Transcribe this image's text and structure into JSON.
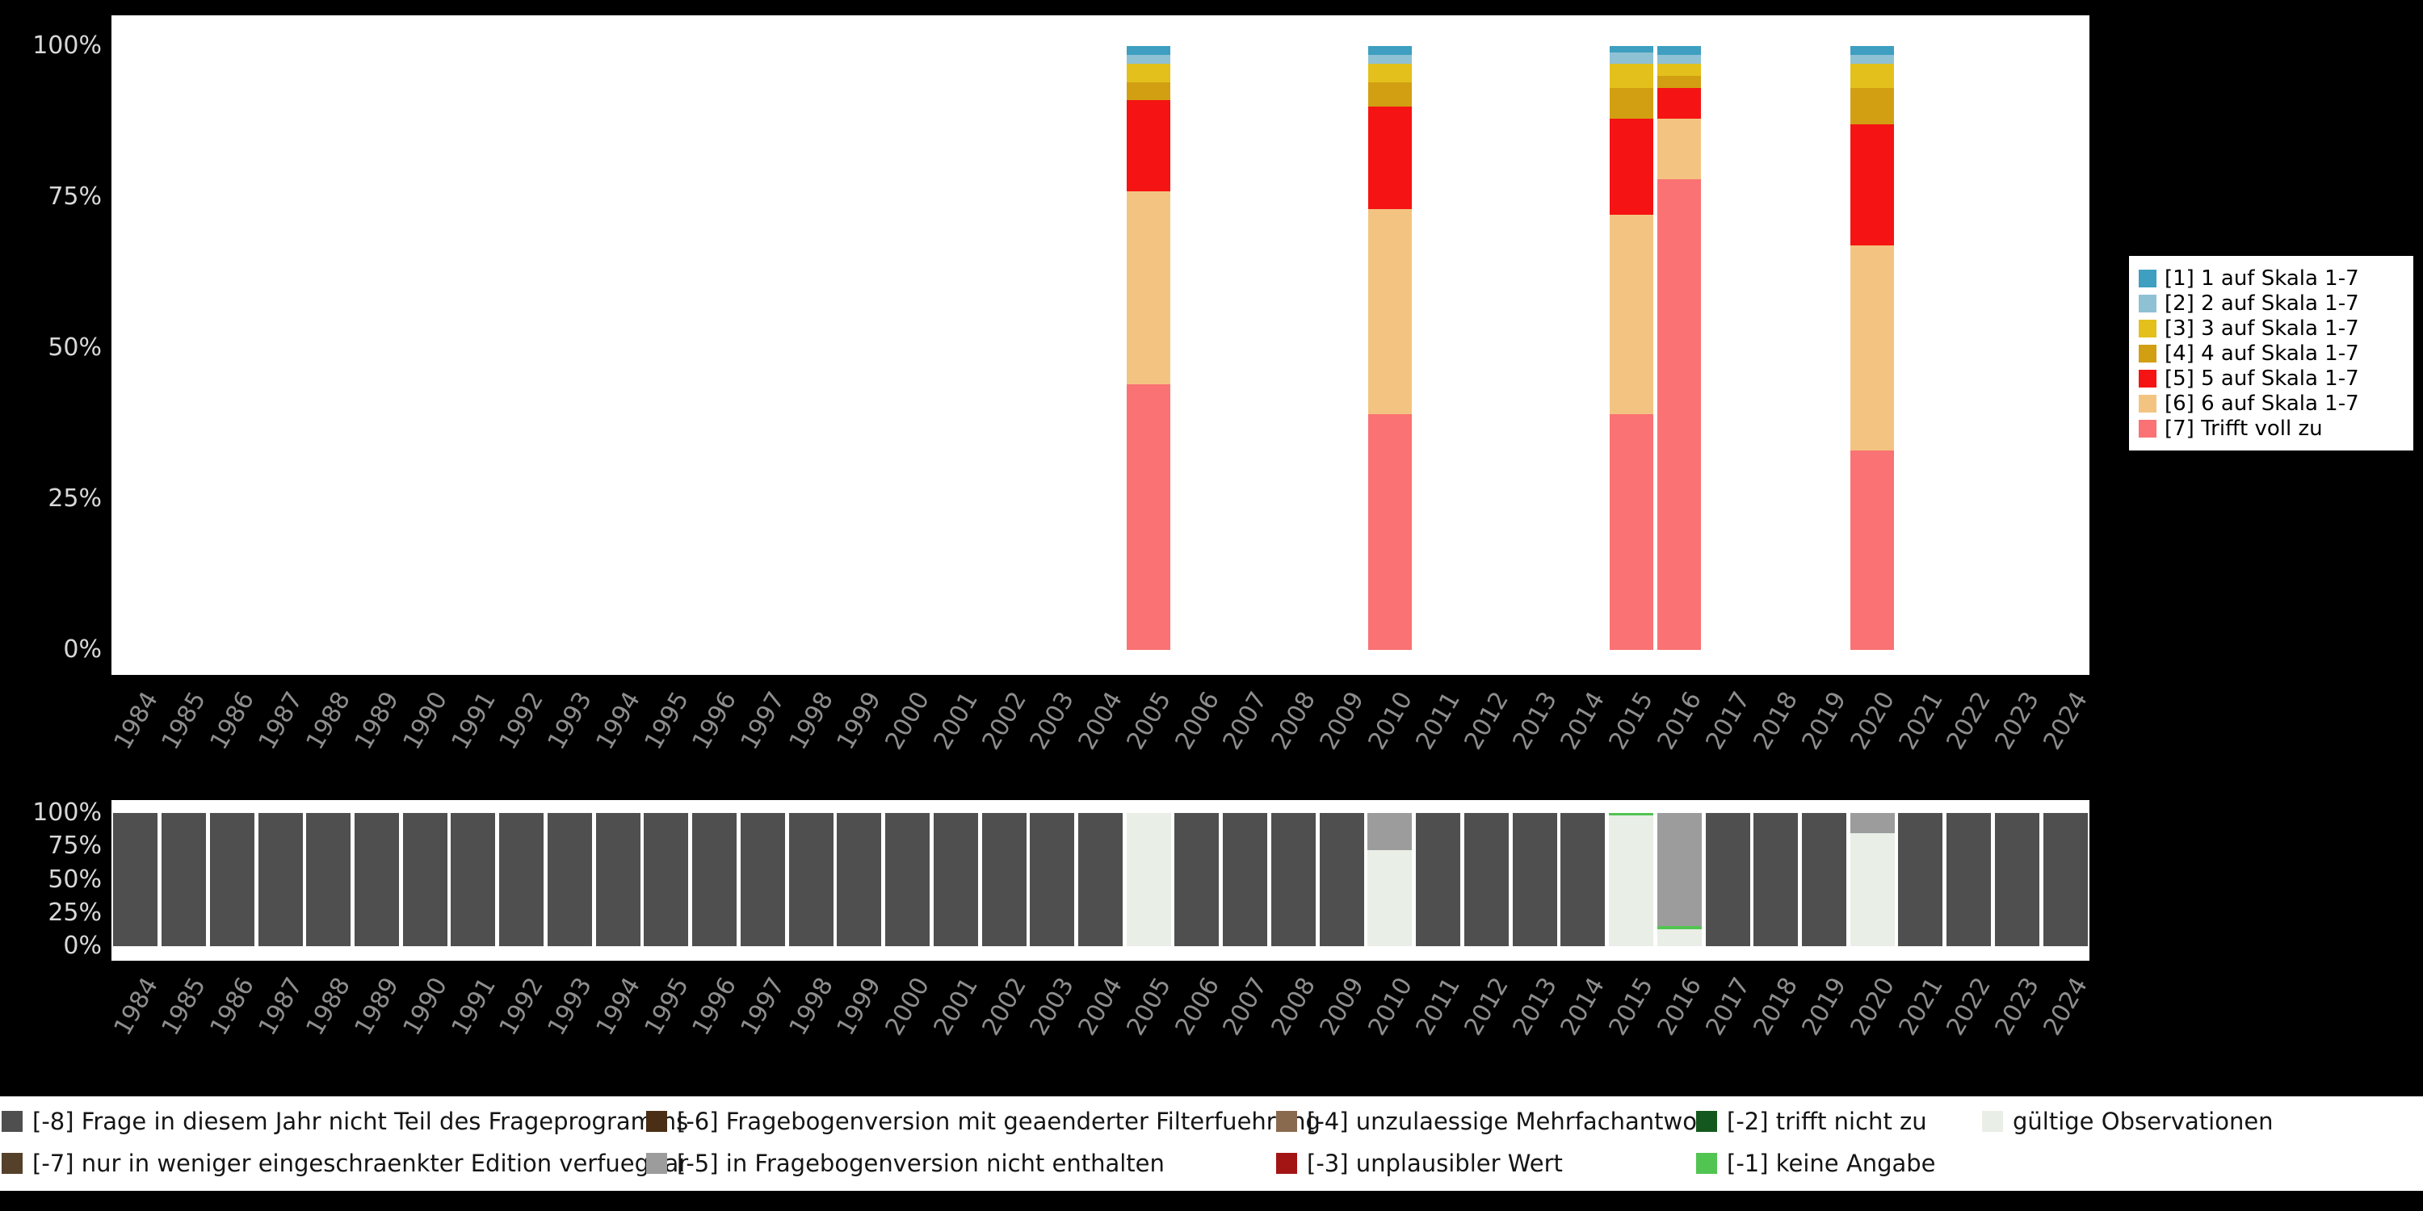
{
  "colors": {
    "background": "#000000",
    "plot_background": "#ffffff",
    "axis_text": "#d8d8d8",
    "year_text": "#8e8e8e",
    "scale": {
      "s1": "#3e9fc0",
      "s2": "#8fc1d4",
      "s3": "#e3c01c",
      "s4": "#d29f12",
      "s5": "#f51413",
      "s6": "#f3c481",
      "s7": "#fa7273"
    },
    "missing": {
      "m8": "#4f4f4f",
      "m7": "#55402a",
      "m6": "#4a2e15",
      "m5": "#9c9c9c",
      "m4": "#8a6a4f",
      "m3": "#a31515",
      "m2": "#14581e",
      "m1": "#52c452",
      "valid": "#e9eee6"
    }
  },
  "chart_data": [
    {
      "name": "answer-distribution",
      "type": "bar",
      "stacked": true,
      "unit": "percent",
      "ylim": [
        0,
        100
      ],
      "grid": false,
      "legend_position": "right",
      "ytick_labels": [
        "100%",
        "75%",
        "50%",
        "25%",
        "0%"
      ],
      "categories": [
        1984,
        1985,
        1986,
        1987,
        1988,
        1989,
        1990,
        1991,
        1992,
        1993,
        1994,
        1995,
        1996,
        1997,
        1998,
        1999,
        2000,
        2001,
        2002,
        2003,
        2004,
        2005,
        2006,
        2007,
        2008,
        2009,
        2010,
        2011,
        2012,
        2013,
        2014,
        2015,
        2016,
        2017,
        2018,
        2019,
        2020,
        2021,
        2022,
        2023,
        2024
      ],
      "legend": [
        {
          "label": "[1] 1 auf Skala 1-7",
          "color": "s1"
        },
        {
          "label": "[2] 2 auf Skala 1-7",
          "color": "s2"
        },
        {
          "label": "[3] 3 auf Skala 1-7",
          "color": "s3"
        },
        {
          "label": "[4] 4 auf Skala 1-7",
          "color": "s4"
        },
        {
          "label": "[5] 5 auf Skala 1-7",
          "color": "s5"
        },
        {
          "label": "[6] 6 auf Skala 1-7",
          "color": "s6"
        },
        {
          "label": "[7] Trifft voll zu",
          "color": "s7"
        }
      ],
      "stack_order": "bottom-up",
      "bars": {
        "2005": [
          [
            "s7",
            44
          ],
          [
            "s6",
            32
          ],
          [
            "s5",
            15
          ],
          [
            "s4",
            3
          ],
          [
            "s3",
            3
          ],
          [
            "s2",
            1.5
          ],
          [
            "s1",
            1.5
          ]
        ],
        "2010": [
          [
            "s7",
            39
          ],
          [
            "s6",
            34
          ],
          [
            "s5",
            17
          ],
          [
            "s4",
            4
          ],
          [
            "s3",
            3
          ],
          [
            "s2",
            1.5
          ],
          [
            "s1",
            1.5
          ]
        ],
        "2015": [
          [
            "s7",
            39
          ],
          [
            "s6",
            33
          ],
          [
            "s5",
            16
          ],
          [
            "s4",
            5
          ],
          [
            "s3",
            4
          ],
          [
            "s2",
            2
          ],
          [
            "s1",
            1
          ]
        ],
        "2016": [
          [
            "s7",
            78
          ],
          [
            "s6",
            10
          ],
          [
            "s5",
            5
          ],
          [
            "s4",
            2
          ],
          [
            "s3",
            2
          ],
          [
            "s2",
            1.5
          ],
          [
            "s1",
            1.5
          ]
        ],
        "2020": [
          [
            "s7",
            33
          ],
          [
            "s6",
            34
          ],
          [
            "s5",
            20
          ],
          [
            "s4",
            6
          ],
          [
            "s3",
            4
          ],
          [
            "s2",
            1.5
          ],
          [
            "s1",
            1.5
          ]
        ]
      }
    },
    {
      "name": "missing-values-distribution",
      "type": "bar",
      "stacked": true,
      "unit": "percent",
      "ylim": [
        0,
        100
      ],
      "grid": false,
      "legend_position": "bottom",
      "ytick_labels": [
        "100%",
        "75%",
        "50%",
        "25%",
        "0%"
      ],
      "categories": [
        1984,
        1985,
        1986,
        1987,
        1988,
        1989,
        1990,
        1991,
        1992,
        1993,
        1994,
        1995,
        1996,
        1997,
        1998,
        1999,
        2000,
        2001,
        2002,
        2003,
        2004,
        2005,
        2006,
        2007,
        2008,
        2009,
        2010,
        2011,
        2012,
        2013,
        2014,
        2015,
        2016,
        2017,
        2018,
        2019,
        2020,
        2021,
        2022,
        2023,
        2024
      ],
      "stack_order": "bottom-up",
      "bars": {
        "default": [
          [
            "m8",
            100
          ]
        ],
        "2005": [
          [
            "valid",
            100
          ]
        ],
        "2010": [
          [
            "valid",
            72
          ],
          [
            "m5",
            28
          ]
        ],
        "2015": [
          [
            "valid",
            98
          ],
          [
            "m1",
            2
          ]
        ],
        "2016": [
          [
            "valid",
            13
          ],
          [
            "m1",
            2
          ],
          [
            "m5",
            85
          ]
        ],
        "2020": [
          [
            "valid",
            85
          ],
          [
            "m5",
            15
          ]
        ]
      }
    }
  ],
  "missing_legend": {
    "rows": [
      [
        {
          "code": "-8",
          "label": "[-8] Frage in diesem Jahr nicht Teil des Frageprogramms",
          "color": "m8"
        },
        {
          "code": "-6",
          "label": "[-6] Fragebogenversion mit geaenderter Filterfuehrung",
          "color": "m6"
        },
        {
          "code": "-4",
          "label": "[-4] unzulaessige Mehrfachantwort",
          "color": "m4"
        },
        {
          "code": "-2",
          "label": "[-2] trifft nicht zu",
          "color": "m2"
        },
        {
          "code": "valid",
          "label": "gültige Observationen",
          "color": "valid"
        }
      ],
      [
        {
          "code": "-7",
          "label": "[-7] nur in weniger eingeschraenkter Edition verfuegbar",
          "color": "m7"
        },
        {
          "code": "-5",
          "label": "[-5] in Fragebogenversion nicht enthalten",
          "color": "m5"
        },
        {
          "code": "-3",
          "label": "[-3] unplausibler Wert",
          "color": "m3"
        },
        {
          "code": "-1",
          "label": "[-1] keine Angabe",
          "color": "m1"
        }
      ]
    ]
  }
}
